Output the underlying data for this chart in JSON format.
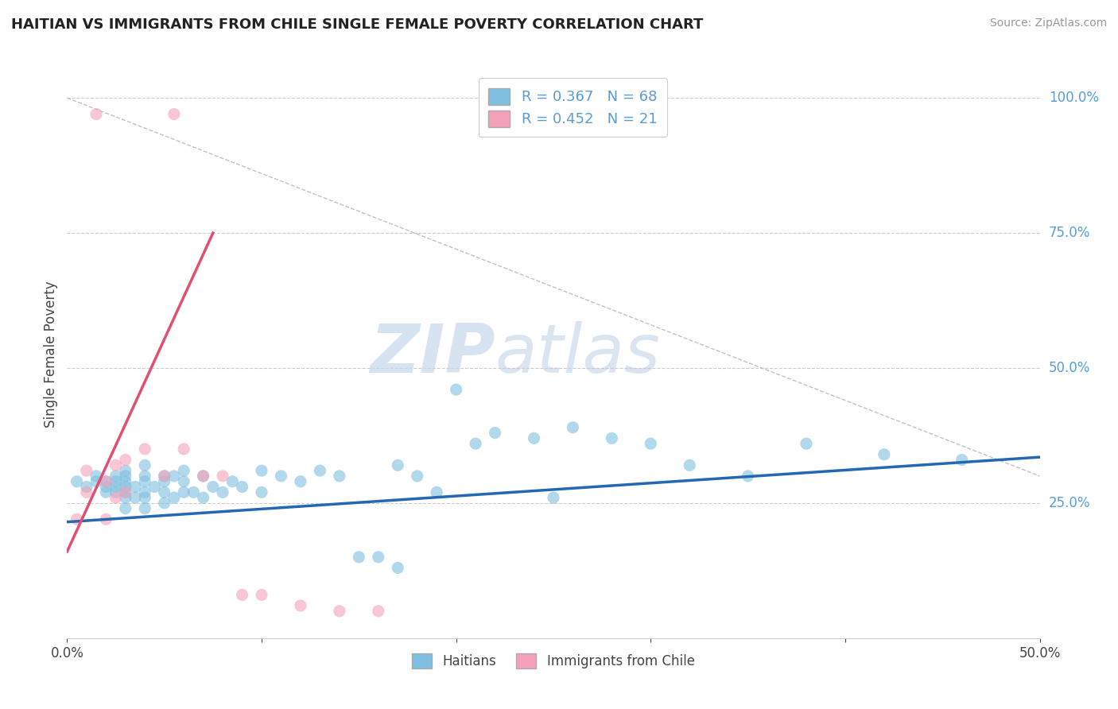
{
  "title": "HAITIAN VS IMMIGRANTS FROM CHILE SINGLE FEMALE POVERTY CORRELATION CHART",
  "source": "Source: ZipAtlas.com",
  "ylabel": "Single Female Poverty",
  "xlim": [
    0.0,
    0.5
  ],
  "ylim": [
    0.0,
    1.05
  ],
  "yticks": [
    0.25,
    0.5,
    0.75,
    1.0
  ],
  "ytick_labels": [
    "25.0%",
    "50.0%",
    "75.0%",
    "100.0%"
  ],
  "xticks": [
    0.0,
    0.1,
    0.2,
    0.3,
    0.4,
    0.5
  ],
  "xtick_labels": [
    "0.0%",
    "",
    "",
    "",
    "",
    "50.0%"
  ],
  "R_blue": 0.367,
  "N_blue": 68,
  "R_pink": 0.452,
  "N_pink": 21,
  "blue_color": "#7fbfdf",
  "pink_color": "#f4a0b8",
  "blue_line_color": "#2469b0",
  "pink_line_color": "#e05070",
  "legend_label_blue": "Haitians",
  "legend_label_pink": "Immigrants from Chile",
  "blue_scatter_x": [
    0.005,
    0.01,
    0.015,
    0.015,
    0.02,
    0.02,
    0.02,
    0.025,
    0.025,
    0.025,
    0.025,
    0.03,
    0.03,
    0.03,
    0.03,
    0.03,
    0.03,
    0.03,
    0.035,
    0.035,
    0.04,
    0.04,
    0.04,
    0.04,
    0.04,
    0.04,
    0.045,
    0.05,
    0.05,
    0.05,
    0.05,
    0.055,
    0.055,
    0.06,
    0.06,
    0.06,
    0.065,
    0.07,
    0.07,
    0.075,
    0.08,
    0.085,
    0.09,
    0.1,
    0.1,
    0.11,
    0.12,
    0.13,
    0.14,
    0.15,
    0.16,
    0.17,
    0.17,
    0.18,
    0.19,
    0.2,
    0.21,
    0.22,
    0.24,
    0.25,
    0.26,
    0.28,
    0.3,
    0.32,
    0.35,
    0.38,
    0.42,
    0.46
  ],
  "blue_scatter_y": [
    0.29,
    0.28,
    0.3,
    0.29,
    0.28,
    0.27,
    0.29,
    0.27,
    0.28,
    0.29,
    0.3,
    0.24,
    0.26,
    0.27,
    0.28,
    0.29,
    0.3,
    0.31,
    0.26,
    0.28,
    0.24,
    0.26,
    0.27,
    0.29,
    0.3,
    0.32,
    0.28,
    0.25,
    0.27,
    0.29,
    0.3,
    0.26,
    0.3,
    0.27,
    0.29,
    0.31,
    0.27,
    0.26,
    0.3,
    0.28,
    0.27,
    0.29,
    0.28,
    0.27,
    0.31,
    0.3,
    0.29,
    0.31,
    0.3,
    0.15,
    0.15,
    0.32,
    0.13,
    0.3,
    0.27,
    0.46,
    0.36,
    0.38,
    0.37,
    0.26,
    0.39,
    0.37,
    0.36,
    0.32,
    0.3,
    0.36,
    0.34,
    0.33
  ],
  "pink_scatter_x": [
    0.005,
    0.01,
    0.01,
    0.015,
    0.02,
    0.02,
    0.025,
    0.025,
    0.03,
    0.03,
    0.04,
    0.05,
    0.055,
    0.06,
    0.07,
    0.08,
    0.09,
    0.1,
    0.12,
    0.14,
    0.16
  ],
  "pink_scatter_y": [
    0.22,
    0.27,
    0.31,
    0.97,
    0.22,
    0.29,
    0.26,
    0.32,
    0.27,
    0.33,
    0.35,
    0.3,
    0.97,
    0.35,
    0.3,
    0.3,
    0.08,
    0.08,
    0.06,
    0.05,
    0.05
  ],
  "dashed_line_x": [
    0.0,
    0.5
  ],
  "dashed_line_y": [
    1.0,
    0.3
  ],
  "blue_trendline_x": [
    0.0,
    0.5
  ],
  "blue_trendline_y": [
    0.215,
    0.335
  ],
  "pink_trendline_x": [
    0.0,
    0.075
  ],
  "pink_trendline_y": [
    0.16,
    0.75
  ]
}
